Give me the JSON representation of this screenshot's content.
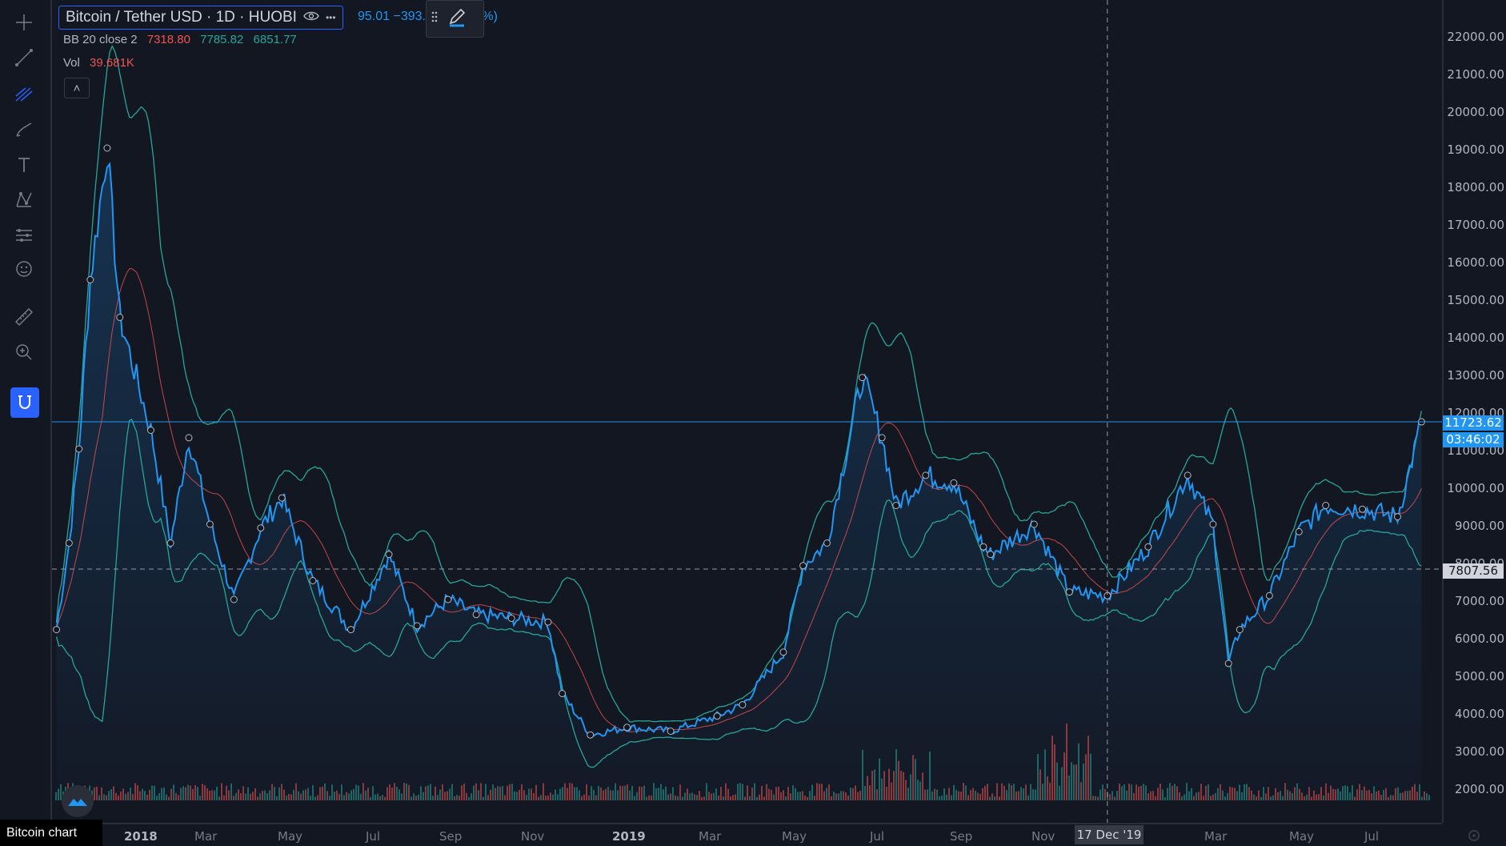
{
  "legend": {
    "symbol": "Bitcoin / Tether USD · 1D · HUOBI",
    "ohlc_partial": "95.01  −393.",
    "ohlc_tail": "%)",
    "bb_label": "BB 20 close 2",
    "bb_basis": "7318.80",
    "bb_upper": "7785.82",
    "bb_lower": "6851.77",
    "vol_label": "Vol",
    "vol_value": "39.681K",
    "collapse": "˄",
    "more": "•••"
  },
  "price_axis": {
    "ticks": [
      "22000.00",
      "21000.00",
      "20000.00",
      "19000.00",
      "18000.00",
      "17000.00",
      "16000.00",
      "15000.00",
      "14000.00",
      "13000.00",
      "12000.00",
      "11000.00",
      "10000.00",
      "9000.00",
      "8000.00",
      "7000.00",
      "6000.00",
      "5000.00",
      "4000.00",
      "3000.00",
      "2000.00"
    ],
    "last_price": "11723.62",
    "countdown": "03:46:02",
    "crosshair_price": "7807.56"
  },
  "time_axis": {
    "ticks": [
      {
        "label": "2018",
        "year": true
      },
      {
        "label": "Mar",
        "year": false
      },
      {
        "label": "May",
        "year": false
      },
      {
        "label": "Jul",
        "year": false
      },
      {
        "label": "Sep",
        "year": false
      },
      {
        "label": "Nov",
        "year": false
      },
      {
        "label": "2019",
        "year": true
      },
      {
        "label": "Mar",
        "year": false
      },
      {
        "label": "May",
        "year": false
      },
      {
        "label": "Jul",
        "year": false
      },
      {
        "label": "Sep",
        "year": false
      },
      {
        "label": "Nov",
        "year": false
      },
      {
        "label": "Mar",
        "year": false
      },
      {
        "label": "May",
        "year": false
      },
      {
        "label": "Jul",
        "year": false
      }
    ],
    "crosshair_date": "17 Dec '19"
  },
  "caption": "Bitcoin chart",
  "colors": {
    "background": "#131722",
    "price_line": "#2196f3",
    "bb_band": "#26a69a",
    "bb_basis": "#ef5350",
    "volume_up": "#26a69a",
    "volume_down": "#ef5350",
    "accent": "#2962ff"
  },
  "toolbar_icons": [
    "crosshair-icon",
    "trend-line-icon",
    "fib-icon",
    "brush-icon",
    "text-icon",
    "pattern-icon",
    "forecast-icon",
    "emoji-icon",
    "ruler-icon",
    "zoom-icon",
    "magnet-icon"
  ],
  "chart_data": {
    "type": "line",
    "title": "Bitcoin / Tether USD · 1D · HUOBI",
    "xlabel": "",
    "ylabel": "",
    "ylim": [
      1700,
      22600
    ],
    "x": [
      "2017-12-01",
      "2017-12-10",
      "2017-12-17",
      "2017-12-25",
      "2018-01-06",
      "2018-01-15",
      "2018-02-06",
      "2018-02-20",
      "2018-03-05",
      "2018-03-20",
      "2018-04-06",
      "2018-04-25",
      "2018-05-10",
      "2018-06-01",
      "2018-06-28",
      "2018-07-25",
      "2018-08-14",
      "2018-09-05",
      "2018-09-25",
      "2018-10-20",
      "2018-11-15",
      "2018-11-25",
      "2018-12-15",
      "2019-01-10",
      "2019-02-10",
      "2019-03-15",
      "2019-04-02",
      "2019-05-01",
      "2019-05-15",
      "2019-06-01",
      "2019-06-26",
      "2019-07-10",
      "2019-07-20",
      "2019-08-10",
      "2019-08-30",
      "2019-09-20",
      "2019-09-25",
      "2019-10-26",
      "2019-11-20",
      "2019-12-17",
      "2020-01-15",
      "2020-02-12",
      "2020-03-01",
      "2020-03-12",
      "2020-03-20",
      "2020-04-10",
      "2020-05-01",
      "2020-05-20",
      "2020-06-15",
      "2020-07-10",
      "2020-07-27"
    ],
    "series": [
      {
        "values": [
          6200,
          8500,
          11000,
          15500,
          19000,
          14500,
          11500,
          8500,
          11300,
          9000,
          7000,
          8900,
          9700,
          7500,
          6200,
          8200,
          6300,
          7000,
          6600,
          6500,
          6400,
          4500,
          3400,
          3600,
          3500,
          3900,
          4200,
          5600,
          7900,
          8500,
          12900,
          11300,
          9500,
          10300,
          10100,
          8400,
          8200,
          9000,
          7200,
          7100,
          8400,
          10300,
          9000,
          5300,
          6200,
          7100,
          8800,
          9500,
          9400,
          9200,
          11723
        ]
      }
    ]
  }
}
